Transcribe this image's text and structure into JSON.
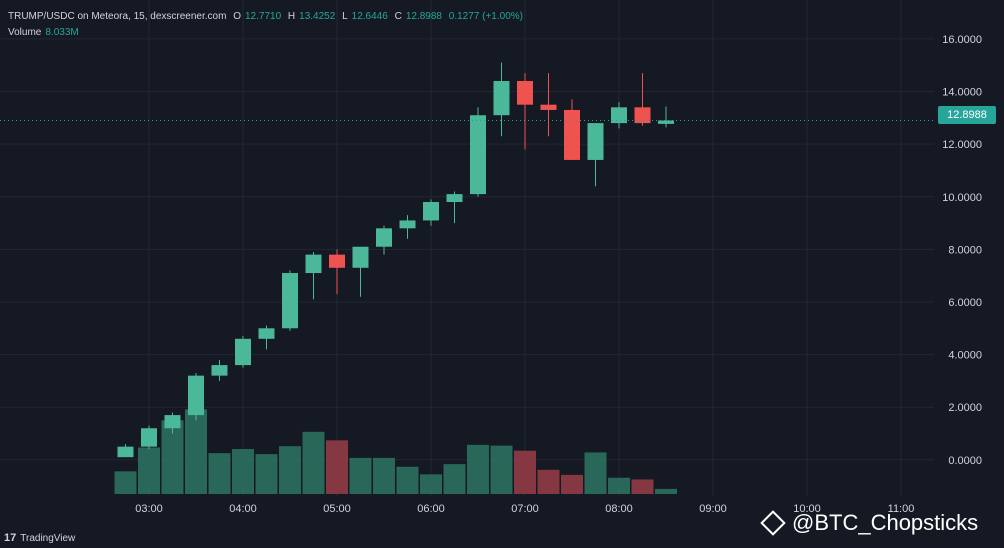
{
  "legend": {
    "symbol": "TRUMP/USDC on Meteora, 15, dexscreener.com",
    "o_label": "O",
    "o_value": "12.7710",
    "h_label": "H",
    "h_value": "13.4252",
    "l_label": "L",
    "l_value": "12.6446",
    "c_label": "C",
    "c_value": "12.8988",
    "change": "0.1277 (+1.00%)",
    "volume_label": "Volume",
    "volume_value": "8.033M"
  },
  "last_price_label": "12.8988",
  "branding": {
    "tradingview": "TradingView",
    "watermark": "@BTC_Chopsticks"
  },
  "colors": {
    "up": "#26a69a",
    "down": "#ef5350",
    "background": "#151924",
    "grid": "#242733",
    "text": "#d1d4dc"
  },
  "chart_data": {
    "type": "candlestick",
    "interval": "15",
    "y_axis": {
      "ticks": [
        "16.0000",
        "14.0000",
        "12.0000",
        "10.0000",
        "8.0000",
        "6.0000",
        "4.0000",
        "2.0000",
        "0.0000"
      ],
      "ylim": [
        -1.3,
        17.1
      ]
    },
    "x_axis": {
      "ticks": [
        "03:00",
        "04:00",
        "05:00",
        "06:00",
        "07:00",
        "08:00",
        "09:00",
        "10:00",
        "11:00"
      ]
    },
    "candles": [
      {
        "t": "02:45",
        "o": 0.1,
        "h": 0.6,
        "l": 0.1,
        "c": 0.5
      },
      {
        "t": "03:00",
        "o": 0.5,
        "h": 1.3,
        "l": 0.4,
        "c": 1.2
      },
      {
        "t": "03:15",
        "o": 1.2,
        "h": 1.8,
        "l": 1.0,
        "c": 1.7
      },
      {
        "t": "03:30",
        "o": 1.7,
        "h": 3.3,
        "l": 1.5,
        "c": 3.2
      },
      {
        "t": "03:45",
        "o": 3.2,
        "h": 3.8,
        "l": 3.0,
        "c": 3.6
      },
      {
        "t": "04:00",
        "o": 3.6,
        "h": 4.7,
        "l": 3.5,
        "c": 4.6
      },
      {
        "t": "04:15",
        "o": 4.6,
        "h": 5.1,
        "l": 4.2,
        "c": 5.0
      },
      {
        "t": "04:30",
        "o": 5.0,
        "h": 7.2,
        "l": 4.9,
        "c": 7.1
      },
      {
        "t": "04:45",
        "o": 7.1,
        "h": 7.9,
        "l": 6.1,
        "c": 7.8
      },
      {
        "t": "05:00",
        "o": 7.8,
        "h": 8.0,
        "l": 6.3,
        "c": 7.3
      },
      {
        "t": "05:15",
        "o": 7.3,
        "h": 8.1,
        "l": 6.2,
        "c": 8.1
      },
      {
        "t": "05:30",
        "o": 8.1,
        "h": 8.9,
        "l": 7.8,
        "c": 8.8
      },
      {
        "t": "05:45",
        "o": 8.8,
        "h": 9.3,
        "l": 8.4,
        "c": 9.1
      },
      {
        "t": "06:00",
        "o": 9.1,
        "h": 9.9,
        "l": 8.9,
        "c": 9.8
      },
      {
        "t": "06:15",
        "o": 9.8,
        "h": 10.2,
        "l": 9.0,
        "c": 10.1
      },
      {
        "t": "06:30",
        "o": 10.1,
        "h": 13.4,
        "l": 10.0,
        "c": 13.1
      },
      {
        "t": "06:45",
        "o": 13.1,
        "h": 15.1,
        "l": 12.3,
        "c": 14.4
      },
      {
        "t": "07:00",
        "o": 14.4,
        "h": 14.7,
        "l": 11.8,
        "c": 13.5
      },
      {
        "t": "07:15",
        "o": 13.5,
        "h": 14.7,
        "l": 12.3,
        "c": 13.3
      },
      {
        "t": "07:30",
        "o": 13.3,
        "h": 13.7,
        "l": 11.4,
        "c": 11.4
      },
      {
        "t": "07:45",
        "o": 11.4,
        "h": 12.8,
        "l": 10.4,
        "c": 12.8
      },
      {
        "t": "08:00",
        "o": 12.8,
        "h": 13.6,
        "l": 12.6,
        "c": 13.4
      },
      {
        "t": "08:15",
        "o": 13.4,
        "h": 14.7,
        "l": 12.7,
        "c": 12.8
      },
      {
        "t": "08:30",
        "o": 12.77,
        "h": 13.43,
        "l": 12.64,
        "c": 12.9
      }
    ],
    "volume": [
      {
        "t": "02:45",
        "v": 1.2,
        "dir": "up"
      },
      {
        "t": "03:00",
        "v": 2.46,
        "dir": "up"
      },
      {
        "t": "03:15",
        "v": 3.9,
        "dir": "up"
      },
      {
        "t": "03:30",
        "v": 4.48,
        "dir": "up"
      },
      {
        "t": "03:45",
        "v": 2.16,
        "dir": "up"
      },
      {
        "t": "04:00",
        "v": 2.38,
        "dir": "up"
      },
      {
        "t": "04:15",
        "v": 2.11,
        "dir": "up"
      },
      {
        "t": "04:30",
        "v": 2.53,
        "dir": "up"
      },
      {
        "t": "04:45",
        "v": 3.29,
        "dir": "up"
      },
      {
        "t": "05:00",
        "v": 2.84,
        "dir": "down"
      },
      {
        "t": "05:15",
        "v": 1.91,
        "dir": "up"
      },
      {
        "t": "05:30",
        "v": 1.91,
        "dir": "up"
      },
      {
        "t": "05:45",
        "v": 1.44,
        "dir": "up"
      },
      {
        "t": "06:00",
        "v": 1.04,
        "dir": "up"
      },
      {
        "t": "06:15",
        "v": 1.58,
        "dir": "up"
      },
      {
        "t": "06:30",
        "v": 2.6,
        "dir": "up"
      },
      {
        "t": "06:45",
        "v": 2.56,
        "dir": "up"
      },
      {
        "t": "07:00",
        "v": 2.29,
        "dir": "down"
      },
      {
        "t": "07:15",
        "v": 1.28,
        "dir": "down"
      },
      {
        "t": "07:30",
        "v": 1.01,
        "dir": "down"
      },
      {
        "t": "07:45",
        "v": 2.2,
        "dir": "up"
      },
      {
        "t": "08:00",
        "v": 0.86,
        "dir": "up"
      },
      {
        "t": "08:15",
        "v": 0.77,
        "dir": "down"
      },
      {
        "t": "08:30",
        "v": 0.27,
        "dir": "up"
      }
    ]
  }
}
